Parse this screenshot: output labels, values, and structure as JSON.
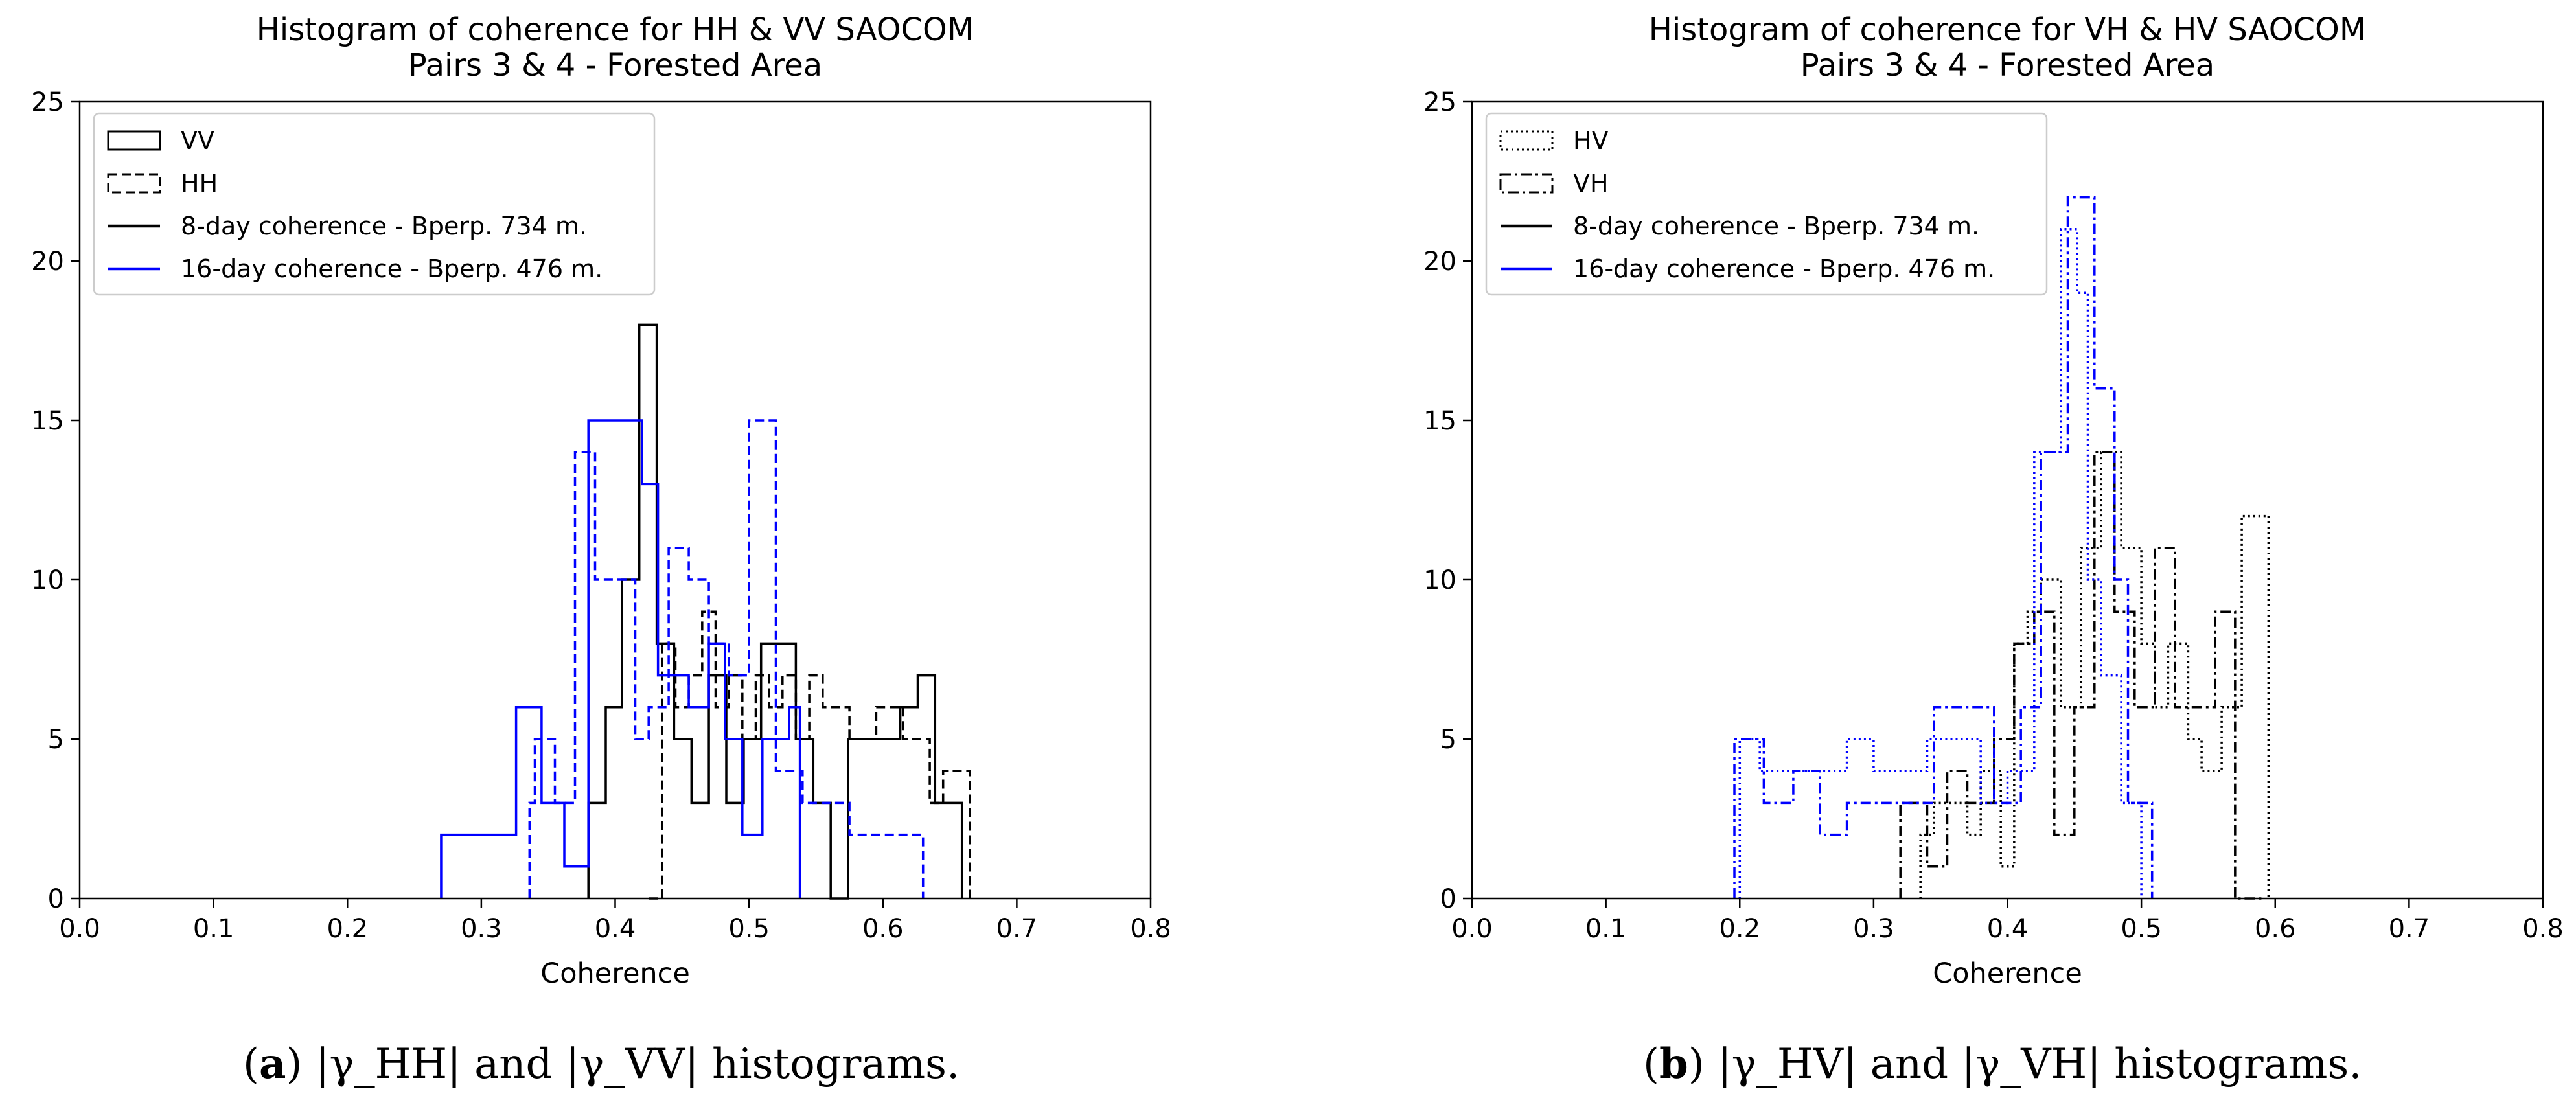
{
  "chart_data": [
    {
      "type": "histogram",
      "title": "Histogram of coherence for  HH & VV SAOCOM\nPairs 3 & 4 - Forested Area",
      "xlabel": "Coherence",
      "ylabel": "",
      "xlim": [
        0.0,
        0.8
      ],
      "ylim": [
        0,
        25
      ],
      "xticks": [
        "0.0",
        "0.1",
        "0.2",
        "0.3",
        "0.4",
        "0.5",
        "0.6",
        "0.7",
        "0.8"
      ],
      "yticks": [
        "0",
        "5",
        "10",
        "15",
        "20",
        "25"
      ],
      "legend_position": "top-left",
      "legend": [
        {
          "label": "VV",
          "marker": "box",
          "dash": "solid",
          "color": "#000000"
        },
        {
          "label": "HH",
          "marker": "box",
          "dash": "dashed",
          "color": "#000000"
        },
        {
          "label": "8-day coherence - Bperp. 734 m.",
          "marker": "line",
          "dash": "solid",
          "color": "#000000"
        },
        {
          "label": "16-day coherence - Bperp. 476 m.",
          "marker": "line",
          "dash": "solid",
          "color": "#0000ff"
        }
      ],
      "series": [
        {
          "name": "VV 8-day",
          "color": "#000000",
          "dash": "solid",
          "edges": [
            0.38,
            0.393,
            0.405,
            0.418,
            0.431,
            0.444,
            0.457,
            0.47,
            0.483,
            0.496,
            0.509,
            0.522,
            0.535,
            0.548,
            0.561,
            0.574,
            0.587,
            0.6,
            0.613,
            0.626,
            0.639,
            0.659
          ],
          "counts": [
            3,
            6,
            10,
            18,
            8,
            5,
            3,
            7,
            3,
            5,
            8,
            8,
            5,
            3,
            0,
            5,
            5,
            5,
            6,
            7,
            3
          ]
        },
        {
          "name": "HH 8-day",
          "color": "#000000",
          "dash": "dashed",
          "edges": [
            0.425,
            0.435,
            0.445,
            0.455,
            0.465,
            0.475,
            0.485,
            0.495,
            0.505,
            0.515,
            0.525,
            0.535,
            0.545,
            0.555,
            0.565,
            0.575,
            0.585,
            0.595,
            0.605,
            0.615,
            0.625,
            0.635,
            0.645,
            0.655,
            0.665
          ],
          "counts": [
            0,
            8,
            6,
            7,
            9,
            6,
            7,
            5,
            7,
            6,
            7,
            5,
            7,
            6,
            6,
            5,
            5,
            6,
            6,
            5,
            5,
            3,
            4,
            4
          ]
        },
        {
          "name": "VV 16-day",
          "color": "#0000ff",
          "dash": "solid",
          "edges": [
            0.27,
            0.326,
            0.345,
            0.362,
            0.38,
            0.42,
            0.432,
            0.455,
            0.47,
            0.482,
            0.495,
            0.51,
            0.53,
            0.538
          ],
          "counts": [
            2,
            6,
            3,
            1,
            15,
            13,
            7,
            6,
            8,
            5,
            2,
            5,
            6
          ]
        },
        {
          "name": "HH 16-day",
          "color": "#0000ff",
          "dash": "dashed",
          "edges": [
            0.336,
            0.34,
            0.355,
            0.37,
            0.385,
            0.4,
            0.415,
            0.425,
            0.44,
            0.455,
            0.47,
            0.485,
            0.5,
            0.52,
            0.54,
            0.56,
            0.575,
            0.59,
            0.61,
            0.63
          ],
          "counts": [
            3,
            5,
            3,
            14,
            10,
            10,
            5,
            6,
            11,
            10,
            8,
            7,
            15,
            4,
            3,
            3,
            2,
            2,
            2
          ]
        }
      ]
    },
    {
      "type": "histogram",
      "title": "Histogram of coherence for  VH & HV SAOCOM\nPairs 3 & 4 - Forested Area",
      "xlabel": "Coherence",
      "ylabel": "",
      "xlim": [
        0.0,
        0.8
      ],
      "ylim": [
        0,
        25
      ],
      "xticks": [
        "0.0",
        "0.1",
        "0.2",
        "0.3",
        "0.4",
        "0.5",
        "0.6",
        "0.7",
        "0.8"
      ],
      "yticks": [
        "0",
        "5",
        "10",
        "15",
        "20",
        "25"
      ],
      "legend_position": "top-left",
      "legend": [
        {
          "label": "HV",
          "marker": "box",
          "dash": "dotted",
          "color": "#000000"
        },
        {
          "label": "VH",
          "marker": "box",
          "dash": "dashdot",
          "color": "#000000"
        },
        {
          "label": "8-day coherence - Bperp. 734 m.",
          "marker": "line",
          "dash": "solid",
          "color": "#000000"
        },
        {
          "label": "16-day coherence - Bperp. 476 m.",
          "marker": "line",
          "dash": "solid",
          "color": "#0000ff"
        }
      ],
      "series": [
        {
          "name": "HV 8-day",
          "color": "#000000",
          "dash": "dotted",
          "edges": [
            0.335,
            0.345,
            0.36,
            0.37,
            0.38,
            0.395,
            0.405,
            0.415,
            0.425,
            0.44,
            0.455,
            0.47,
            0.485,
            0.5,
            0.51,
            0.52,
            0.535,
            0.545,
            0.56,
            0.575,
            0.595
          ],
          "counts": [
            2,
            3,
            3,
            2,
            4,
            1,
            8,
            9,
            10,
            6,
            11,
            14,
            11,
            8,
            6,
            8,
            5,
            4,
            6,
            12
          ]
        },
        {
          "name": "VH 8-day",
          "color": "#000000",
          "dash": "dashdot",
          "edges": [
            0.32,
            0.34,
            0.355,
            0.37,
            0.39,
            0.405,
            0.42,
            0.435,
            0.45,
            0.465,
            0.48,
            0.495,
            0.51,
            0.525,
            0.54,
            0.555,
            0.57,
            0.59
          ],
          "counts": [
            3,
            1,
            4,
            3,
            5,
            8,
            9,
            2,
            6,
            14,
            9,
            6,
            11,
            6,
            6,
            9,
            0
          ]
        },
        {
          "name": "HV 16-day",
          "color": "#0000ff",
          "dash": "dotted",
          "edges": [
            0.2,
            0.215,
            0.23,
            0.26,
            0.28,
            0.3,
            0.32,
            0.34,
            0.36,
            0.38,
            0.4,
            0.42,
            0.44,
            0.452,
            0.46,
            0.47,
            0.485,
            0.5
          ],
          "counts": [
            5,
            4,
            4,
            4,
            5,
            4,
            4,
            5,
            5,
            3,
            4,
            14,
            21,
            19,
            10,
            7,
            3
          ]
        },
        {
          "name": "VH 16-day",
          "color": "#0000ff",
          "dash": "dashdot",
          "edges": [
            0.196,
            0.218,
            0.24,
            0.26,
            0.28,
            0.3,
            0.32,
            0.345,
            0.37,
            0.39,
            0.41,
            0.425,
            0.445,
            0.465,
            0.48,
            0.49,
            0.508
          ],
          "counts": [
            5,
            3,
            4,
            2,
            3,
            3,
            3,
            6,
            6,
            3,
            6,
            14,
            22,
            16,
            10,
            3
          ]
        }
      ]
    }
  ],
  "captions": [
    {
      "letter": "a",
      "text": " |γ_HH| and |γ_VV| histograms."
    },
    {
      "letter": "b",
      "text": " |γ_HV| and |γ_VH| histograms."
    }
  ]
}
